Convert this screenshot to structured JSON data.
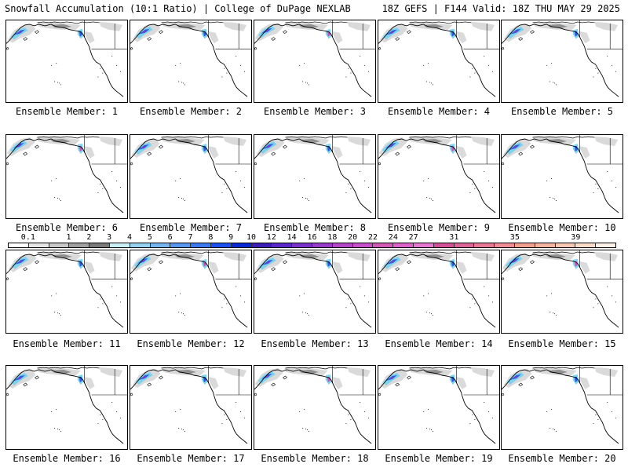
{
  "header": {
    "title": "Snowfall Accumulation (10:1 Ratio) | College of DuPage NEXLAB",
    "run_info": "18Z GEFS | F144 Valid: 18Z THU MAY 29 2025"
  },
  "panels": [
    {
      "label": "Ensemble Member: 1"
    },
    {
      "label": "Ensemble Member: 2"
    },
    {
      "label": "Ensemble Member: 3"
    },
    {
      "label": "Ensemble Member: 4"
    },
    {
      "label": "Ensemble Member: 5"
    },
    {
      "label": "Ensemble Member: 6"
    },
    {
      "label": "Ensemble Member: 7"
    },
    {
      "label": "Ensemble Member: 8"
    },
    {
      "label": "Ensemble Member: 9"
    },
    {
      "label": "Ensemble Member: 10"
    },
    {
      "label": "Ensemble Member: 11"
    },
    {
      "label": "Ensemble Member: 12"
    },
    {
      "label": "Ensemble Member: 13"
    },
    {
      "label": "Ensemble Member: 14"
    },
    {
      "label": "Ensemble Member: 15"
    },
    {
      "label": "Ensemble Member: 16"
    },
    {
      "label": "Ensemble Member: 17"
    },
    {
      "label": "Ensemble Member: 18"
    },
    {
      "label": "Ensemble Member: 19"
    },
    {
      "label": "Ensemble Member: 20"
    }
  ],
  "legend": {
    "labels": [
      "0.1",
      "1",
      "2",
      "3",
      "4",
      "5",
      "6",
      "7",
      "8",
      "9",
      "10",
      "12",
      "14",
      "16",
      "18",
      "20",
      "22",
      "24",
      "27",
      "31",
      "35",
      "39"
    ],
    "colors": [
      "#ffffff",
      "#e6e6e6",
      "#c8c8c8",
      "#a0a0a0",
      "#7a7a7a",
      "#c8f0f5",
      "#96d2f0",
      "#78b4f0",
      "#5a96f0",
      "#3c78f0",
      "#1e50f0",
      "#0a28d2",
      "#3c1eb4",
      "#5a28c8",
      "#7832c8",
      "#963cc8",
      "#b446c8",
      "#c850c8",
      "#d25ab4",
      "#dc64c8",
      "#e678d2",
      "#d25096",
      "#dc6496",
      "#e67896",
      "#f08c96",
      "#f0a08c",
      "#f5b4a0",
      "#f8c8b4",
      "#fadcc8",
      "#fdf0e6"
    ]
  },
  "map": {
    "colors": {
      "land_outline": "#000000",
      "gray_light": "#d8d8d8",
      "gray_dark": "#8c8c8c",
      "cyan": "#78d2f0",
      "blue": "#2850e6",
      "purple": "#8c3cc8",
      "magenta": "#d24bb4"
    }
  }
}
